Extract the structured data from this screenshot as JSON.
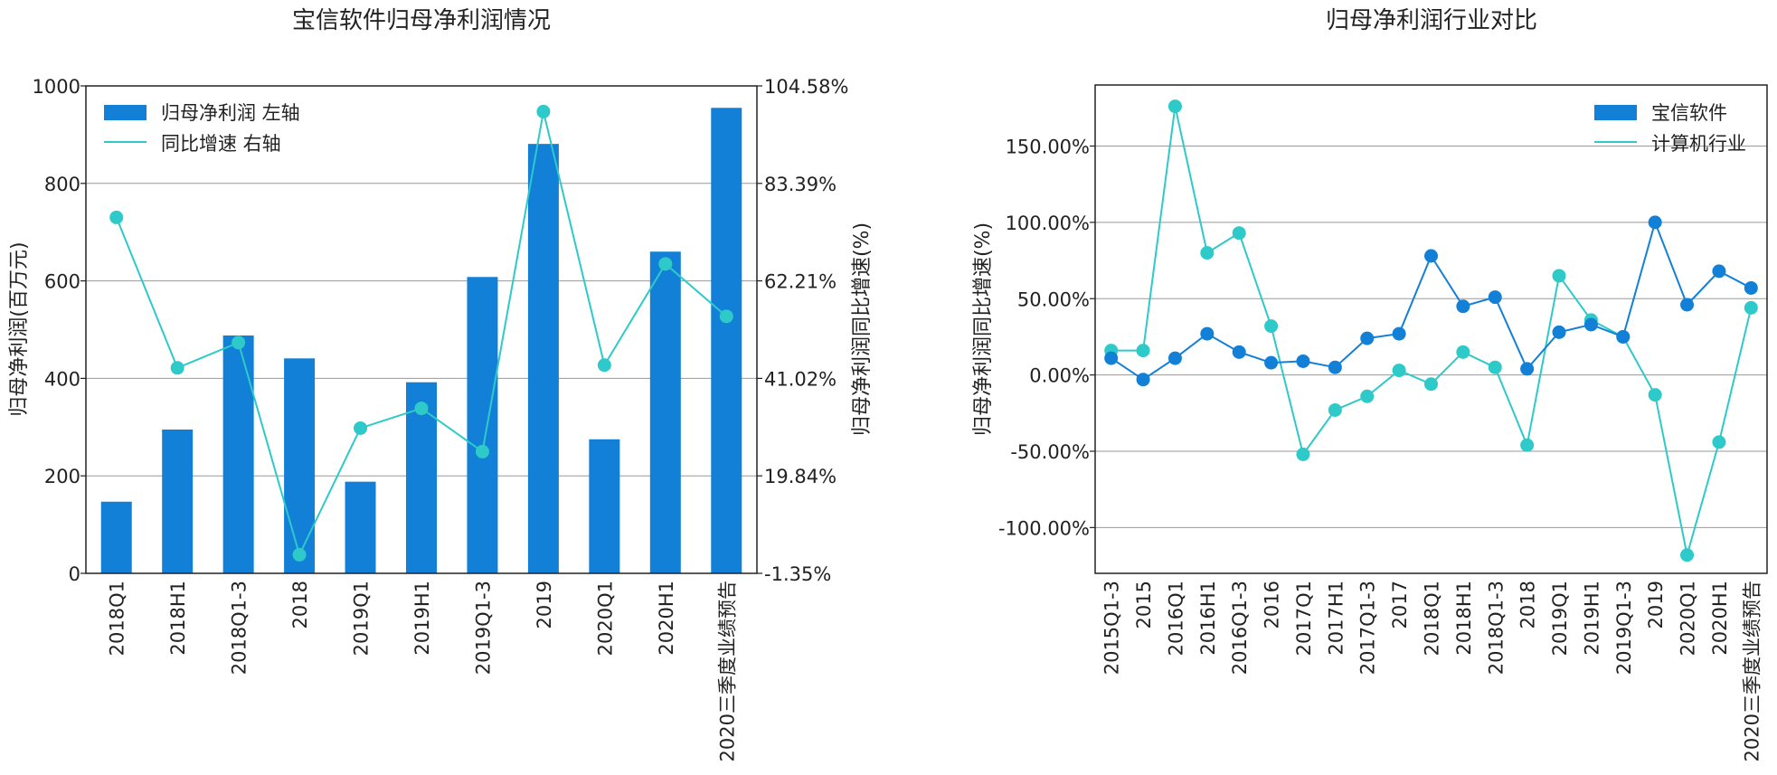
{
  "chart_data": [
    {
      "type": "bar+line",
      "title": "宝信软件归母净利润情况",
      "categories": [
        "2018Q1",
        "2018H1",
        "2018Q1-3",
        "2018",
        "2019Q1",
        "2019H1",
        "2019Q1-3",
        "2019",
        "2020Q1",
        "2020H1",
        "2020三季度业绩预告"
      ],
      "series": [
        {
          "name": "归母净利润 左轴",
          "kind": "bar",
          "axis": "left",
          "values": [
            147,
            295,
            488,
            441,
            188,
            392,
            608,
            881,
            275,
            660,
            955
          ]
        },
        {
          "name": "同比增速 右轴",
          "kind": "line",
          "axis": "right",
          "values": [
            76.0,
            43.3,
            48.8,
            2.7,
            30.2,
            34.5,
            25.1,
            99.0,
            43.9,
            65.9,
            54.5
          ]
        }
      ],
      "ylabel_left": "归母净利润(百万元)",
      "ylabel_right": "归母净利润同比增速(%)",
      "ylim_left": [
        0,
        1000
      ],
      "yticks_left": [
        "0",
        "200",
        "400",
        "600",
        "800",
        "1000"
      ],
      "ylim_right": [
        -1.35,
        104.58
      ],
      "yticks_right": [
        "-1.35%",
        "19.84%",
        "41.02%",
        "62.21%",
        "83.39%",
        "104.58%"
      ],
      "grid": "horizontal",
      "legend": "top-left",
      "colors": {
        "bar": "#1380d7",
        "line": "#2ec9c9"
      }
    },
    {
      "type": "line",
      "title": "归母净利润行业对比",
      "categories": [
        "2015Q1-3",
        "2015",
        "2016Q1",
        "2016H1",
        "2016Q1-3",
        "2016",
        "2017Q1",
        "2017H1",
        "2017Q1-3",
        "2017",
        "2018Q1",
        "2018H1",
        "2018Q1-3",
        "2018",
        "2019Q1",
        "2019H1",
        "2019Q1-3",
        "2019",
        "2020Q1",
        "2020H1",
        "2020三季度业绩预告"
      ],
      "series": [
        {
          "name": "宝信软件",
          "values": [
            11,
            -3,
            11,
            27,
            15,
            8,
            9,
            5,
            24,
            27,
            78,
            45,
            51,
            4,
            28,
            33,
            25,
            100,
            46,
            68,
            57
          ]
        },
        {
          "name": "计算机行业",
          "values": [
            16,
            16,
            176,
            80,
            93,
            32,
            -52,
            -23,
            -14,
            3,
            -6,
            15,
            5,
            -46,
            65,
            36,
            25,
            -13,
            -118,
            -44,
            44
          ]
        }
      ],
      "ylabel": "归母净利润同比增速(%)",
      "ylim": [
        -130,
        190
      ],
      "yticks": [
        {
          "value": 150,
          "label": "150.00%"
        },
        {
          "value": 100,
          "label": "100.00%"
        },
        {
          "value": 50,
          "label": "50.00%"
        },
        {
          "value": 0,
          "label": "0.00%"
        },
        {
          "value": -50,
          "label": "-50.00%"
        },
        {
          "value": -100,
          "label": "-100.00%"
        }
      ],
      "grid": "horizontal",
      "legend": "top-right",
      "colors": {
        "宝信软件": "#1380d7",
        "计算机行业": "#2ec9c9"
      }
    }
  ]
}
